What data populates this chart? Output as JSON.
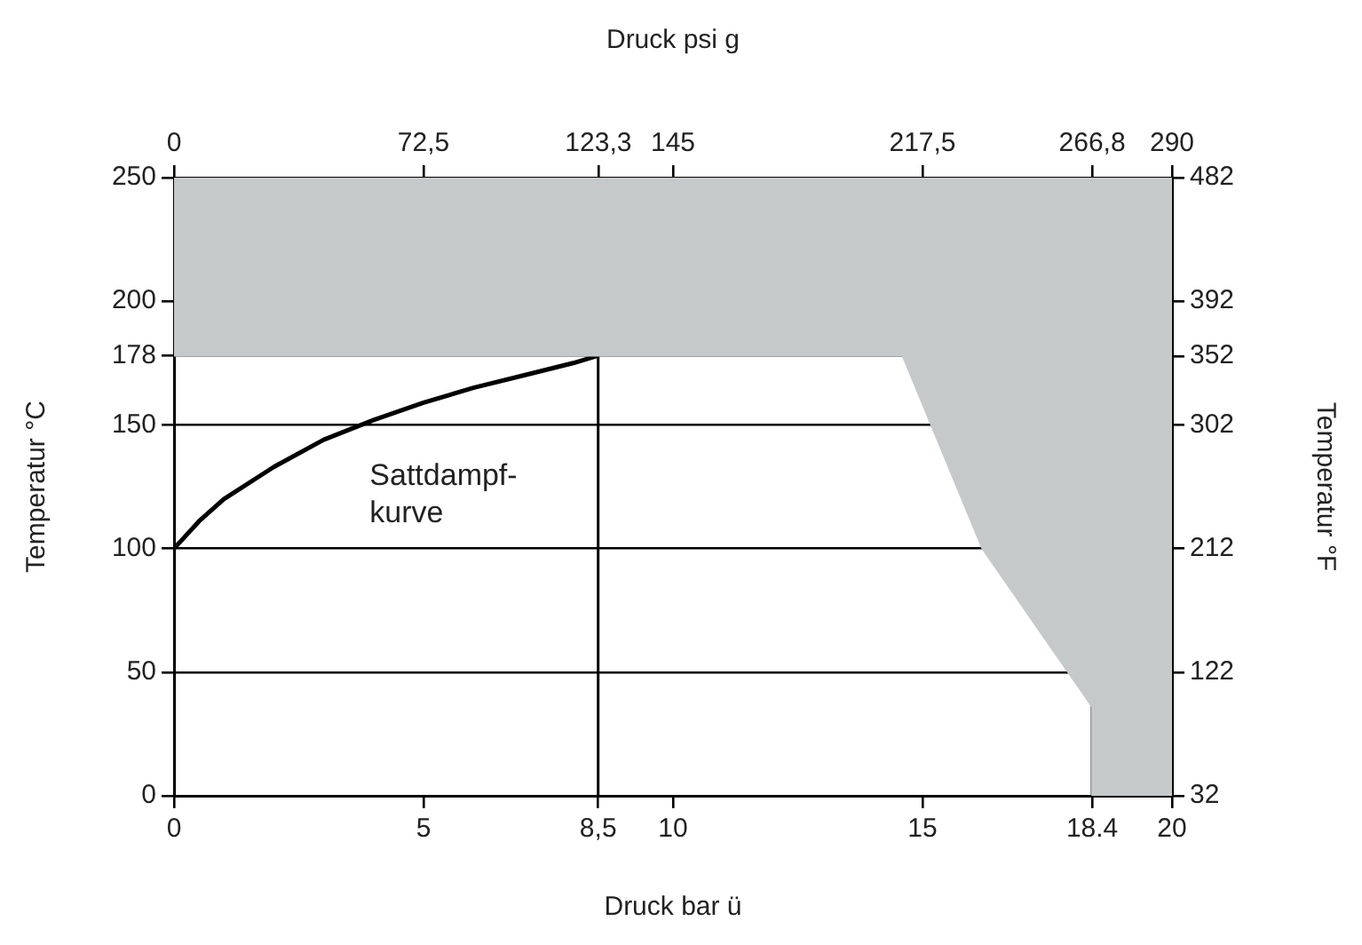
{
  "chart_data": {
    "type": "line",
    "xlabel": "Druck bar ü",
    "x2label": "Druck psi g",
    "ylabel": "Temperatur °C",
    "y2label": "Temperatur °F",
    "xlim": [
      0,
      20
    ],
    "xticks": [
      0,
      5,
      10,
      15,
      20,
      {
        "value": 8.5,
        "label": "8,5"
      },
      {
        "value": 18.4,
        "label": "18.4"
      }
    ],
    "x2lim": [
      0,
      290
    ],
    "x2ticks": [
      0,
      {
        "value": 72.5,
        "label": "72,5"
      },
      {
        "value": 123.3,
        "label": "123,3"
      },
      145,
      {
        "value": 217.5,
        "label": "217,5"
      },
      {
        "value": 266.8,
        "label": "266,8"
      },
      290
    ],
    "ylim": [
      0,
      250
    ],
    "yticks": [
      0,
      50,
      100,
      150,
      178,
      200,
      250
    ],
    "y2lim": [
      32,
      482
    ],
    "y2ticks": [
      32,
      122,
      212,
      302,
      352,
      392,
      482
    ],
    "grid": "y",
    "legend": false,
    "marker": "none",
    "line_style": "solid",
    "ref_lines": [
      {
        "axis": "x",
        "value": 8.5
      },
      {
        "axis": "x",
        "value": 18.4
      }
    ],
    "annotations": [
      "Sattdampf-\nkurve"
    ],
    "series": [
      {
        "type": "area",
        "color": "#c6c9ca",
        "x": [
          0,
          14.6,
          16.2,
          18.4,
          18.4,
          20,
          20,
          0,
          0
        ],
        "values": [
          178,
          178,
          100,
          36,
          0,
          0,
          250,
          250,
          178
        ]
      },
      {
        "color": "#000000",
        "x": [
          0,
          0.5,
          1,
          2,
          3,
          4,
          5,
          6,
          7,
          8,
          8.5
        ],
        "values": [
          100,
          111,
          120,
          133,
          144,
          152,
          159,
          165,
          170,
          175,
          178
        ]
      }
    ]
  }
}
